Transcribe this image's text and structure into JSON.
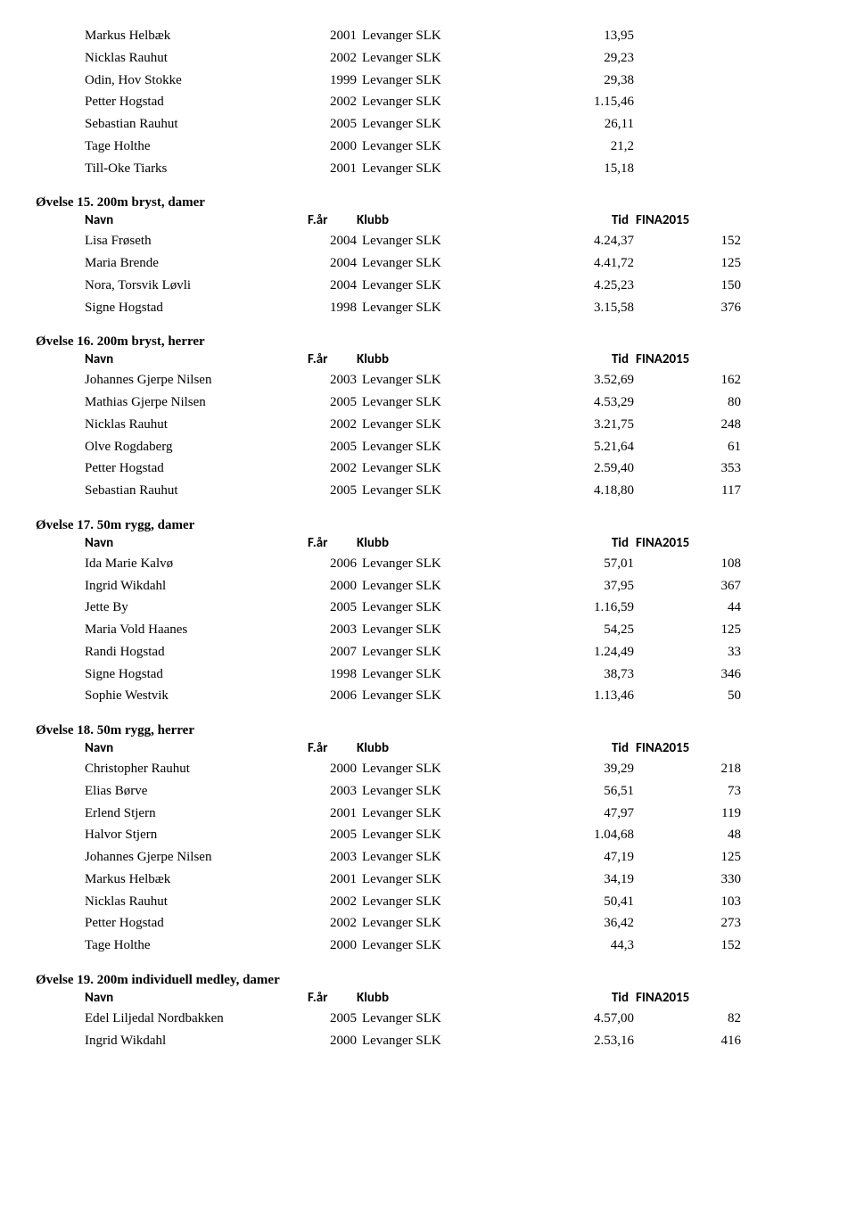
{
  "top_rows": [
    {
      "name": "Markus Helbæk",
      "year": "2001",
      "klubb": "Levanger SLK",
      "tid": "13,95",
      "fina": ""
    },
    {
      "name": "Nicklas Rauhut",
      "year": "2002",
      "klubb": "Levanger SLK",
      "tid": "29,23",
      "fina": ""
    },
    {
      "name": "Odin,  Hov Stokke",
      "year": "1999",
      "klubb": "Levanger SLK",
      "tid": "29,38",
      "fina": ""
    },
    {
      "name": "Petter Hogstad",
      "year": "2002",
      "klubb": "Levanger SLK",
      "tid": "1.15,46",
      "fina": ""
    },
    {
      "name": "Sebastian Rauhut",
      "year": "2005",
      "klubb": "Levanger SLK",
      "tid": "26,11",
      "fina": ""
    },
    {
      "name": "Tage Holthe",
      "year": "2000",
      "klubb": "Levanger SLK",
      "tid": "21,2",
      "fina": ""
    },
    {
      "name": "Till-Oke Tiarks",
      "year": "2001",
      "klubb": "Levanger SLK",
      "tid": "15,18",
      "fina": ""
    }
  ],
  "header": {
    "navn": "Navn",
    "far": "F.år",
    "klubb": "Klubb",
    "tid": "Tid",
    "fina": "FINA2015"
  },
  "sections": [
    {
      "title": "Øvelse 15. 200m bryst, damer",
      "rows": [
        {
          "name": "Lisa Frøseth",
          "year": "2004",
          "klubb": "Levanger SLK",
          "tid": "4.24,37",
          "fina": "152"
        },
        {
          "name": "Maria Brende",
          "year": "2004",
          "klubb": "Levanger SLK",
          "tid": "4.41,72",
          "fina": "125"
        },
        {
          "name": "Nora, Torsvik  Løvli",
          "year": "2004",
          "klubb": "Levanger SLK",
          "tid": "4.25,23",
          "fina": "150"
        },
        {
          "name": "Signe Hogstad",
          "year": "1998",
          "klubb": "Levanger SLK",
          "tid": "3.15,58",
          "fina": "376"
        }
      ]
    },
    {
      "title": "Øvelse 16. 200m bryst, herrer",
      "rows": [
        {
          "name": "Johannes Gjerpe Nilsen",
          "year": "2003",
          "klubb": "Levanger SLK",
          "tid": "3.52,69",
          "fina": "162"
        },
        {
          "name": "Mathias Gjerpe Nilsen",
          "year": "2005",
          "klubb": "Levanger SLK",
          "tid": "4.53,29",
          "fina": "80"
        },
        {
          "name": "Nicklas Rauhut",
          "year": "2002",
          "klubb": "Levanger SLK",
          "tid": "3.21,75",
          "fina": "248"
        },
        {
          "name": "Olve Rogdaberg",
          "year": "2005",
          "klubb": "Levanger SLK",
          "tid": "5.21,64",
          "fina": "61"
        },
        {
          "name": "Petter Hogstad",
          "year": "2002",
          "klubb": "Levanger SLK",
          "tid": "2.59,40",
          "fina": "353"
        },
        {
          "name": "Sebastian Rauhut",
          "year": "2005",
          "klubb": "Levanger SLK",
          "tid": "4.18,80",
          "fina": "117"
        }
      ]
    },
    {
      "title": "Øvelse 17. 50m rygg, damer",
      "rows": [
        {
          "name": "Ida Marie Kalvø",
          "year": "2006",
          "klubb": "Levanger SLK",
          "tid": "57,01",
          "fina": "108"
        },
        {
          "name": "Ingrid Wikdahl",
          "year": "2000",
          "klubb": "Levanger SLK",
          "tid": "37,95",
          "fina": "367"
        },
        {
          "name": "Jette By",
          "year": "2005",
          "klubb": "Levanger SLK",
          "tid": "1.16,59",
          "fina": "44"
        },
        {
          "name": "Maria Vold Haanes",
          "year": "2003",
          "klubb": "Levanger SLK",
          "tid": "54,25",
          "fina": "125"
        },
        {
          "name": "Randi Hogstad",
          "year": "2007",
          "klubb": "Levanger SLK",
          "tid": "1.24,49",
          "fina": "33"
        },
        {
          "name": "Signe Hogstad",
          "year": "1998",
          "klubb": "Levanger SLK",
          "tid": "38,73",
          "fina": "346"
        },
        {
          "name": "Sophie Westvik",
          "year": "2006",
          "klubb": "Levanger SLK",
          "tid": "1.13,46",
          "fina": "50"
        }
      ]
    },
    {
      "title": "Øvelse 18. 50m rygg, herrer",
      "rows": [
        {
          "name": "Christopher Rauhut",
          "year": "2000",
          "klubb": "Levanger SLK",
          "tid": "39,29",
          "fina": "218"
        },
        {
          "name": "Elias Børve",
          "year": "2003",
          "klubb": "Levanger SLK",
          "tid": "56,51",
          "fina": "73"
        },
        {
          "name": "Erlend Stjern",
          "year": "2001",
          "klubb": "Levanger SLK",
          "tid": "47,97",
          "fina": "119"
        },
        {
          "name": "Halvor Stjern",
          "year": "2005",
          "klubb": "Levanger SLK",
          "tid": "1.04,68",
          "fina": "48"
        },
        {
          "name": "Johannes Gjerpe Nilsen",
          "year": "2003",
          "klubb": "Levanger SLK",
          "tid": "47,19",
          "fina": "125"
        },
        {
          "name": "Markus Helbæk",
          "year": "2001",
          "klubb": "Levanger SLK",
          "tid": "34,19",
          "fina": "330"
        },
        {
          "name": "Nicklas Rauhut",
          "year": "2002",
          "klubb": "Levanger SLK",
          "tid": "50,41",
          "fina": "103"
        },
        {
          "name": "Petter Hogstad",
          "year": "2002",
          "klubb": "Levanger SLK",
          "tid": "36,42",
          "fina": "273"
        },
        {
          "name": "Tage Holthe",
          "year": "2000",
          "klubb": "Levanger SLK",
          "tid": "44,3",
          "fina": "152"
        }
      ]
    },
    {
      "title": "Øvelse 19. 200m individuell medley, damer",
      "rows": [
        {
          "name": "Edel Liljedal Nordbakken",
          "year": "2005",
          "klubb": "Levanger SLK",
          "tid": "4.57,00",
          "fina": "82"
        },
        {
          "name": "Ingrid Wikdahl",
          "year": "2000",
          "klubb": "Levanger SLK",
          "tid": "2.53,16",
          "fina": "416"
        }
      ]
    }
  ]
}
